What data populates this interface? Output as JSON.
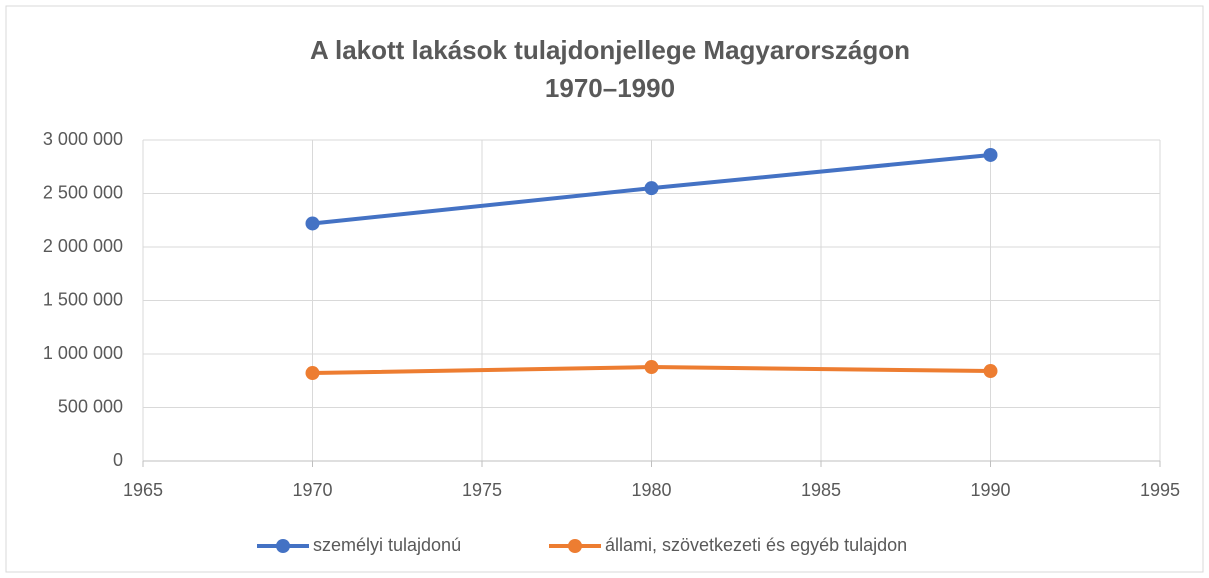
{
  "chart_data": {
    "type": "line",
    "title": "A lakott lakások tulajdonjellege Magyarországon",
    "subtitle": "1970–1990",
    "x": [
      1970,
      1980,
      1990
    ],
    "series": [
      {
        "name": "személyi tulajdonú",
        "color": "#4472c4",
        "values": [
          2220000,
          2550000,
          2860000
        ]
      },
      {
        "name": "állami, szövetkezeti és egyéb tulajdon",
        "color": "#ed7d31",
        "values": [
          822000,
          878000,
          841000
        ]
      }
    ],
    "xlim": [
      1965,
      1995
    ],
    "xticks": [
      1965,
      1970,
      1975,
      1980,
      1985,
      1990,
      1995
    ],
    "ylim": [
      0,
      3000000
    ],
    "yticks": [
      0,
      {
        "value": 500000,
        "label": "500 000"
      },
      {
        "value": 1000000,
        "label": "1 000 000"
      },
      {
        "value": 1500000,
        "label": "1 500 000"
      },
      {
        "value": 2000000,
        "label": "2 000 000"
      },
      {
        "value": 2500000,
        "label": "2 500 000"
      },
      {
        "value": 3000000,
        "label": "3 000 000"
      }
    ],
    "grid": true,
    "legend": "bottom"
  }
}
